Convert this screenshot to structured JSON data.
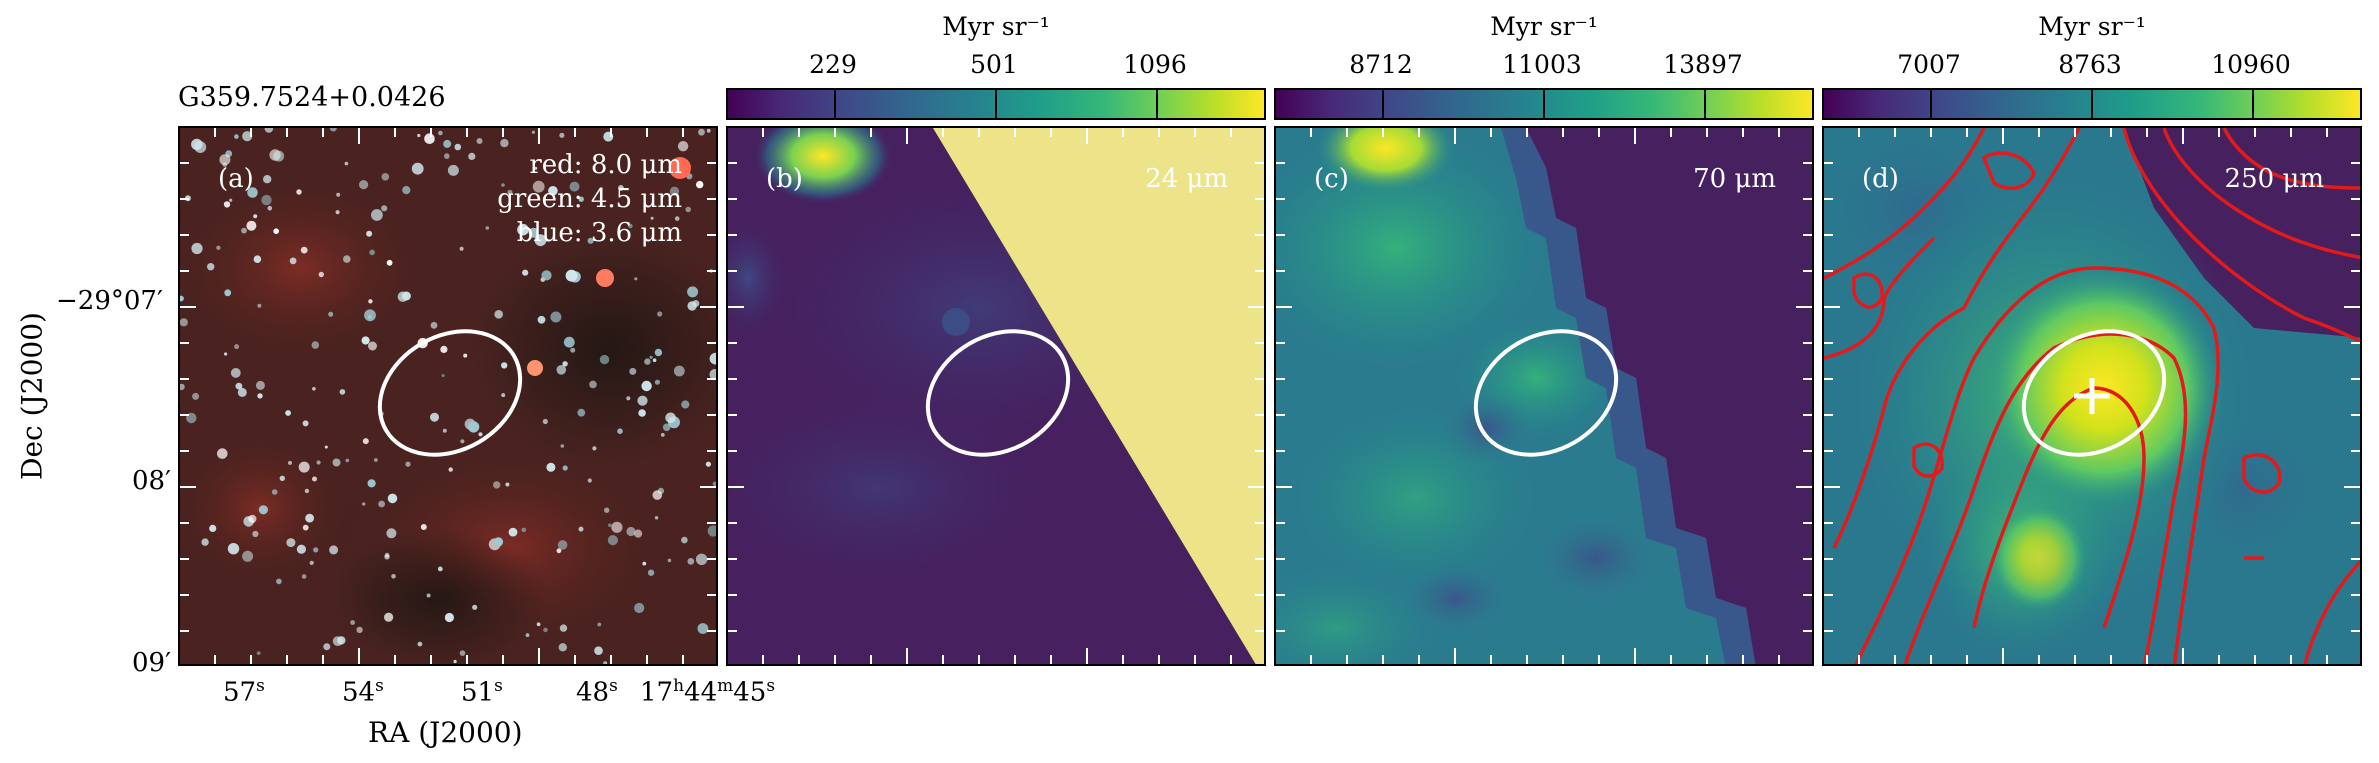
{
  "source_name": "G359.7524+0.0426",
  "xaxis_label": "RA (J2000)",
  "yaxis_label": "Dec (J2000)",
  "ra_ticks": {
    "t1": {
      "val": "57",
      "unit": "s"
    },
    "t2": {
      "val": "54",
      "unit": "s"
    },
    "t3": {
      "val": "51",
      "unit": "s"
    },
    "t4": {
      "val": "48",
      "unit": "s"
    },
    "t5": {
      "h": "17",
      "hu": "h",
      "m": "44",
      "mu": "m",
      "s": "45",
      "su": "s"
    }
  },
  "dec_ticks": {
    "t1": "−29°07′",
    "t2": "08′",
    "t3": "09′"
  },
  "panels": {
    "a": {
      "letter": "(a)",
      "legend": {
        "red": "red: 8.0 μm",
        "green": "green: 4.5 μm",
        "blue": "blue: 3.6 μm"
      }
    },
    "b": {
      "letter": "(b)",
      "band": "24 μm",
      "cbar_unit": "Myr sr⁻¹",
      "cbar_ticks": [
        "229",
        "501",
        "1096"
      ]
    },
    "c": {
      "letter": "(c)",
      "band": "70 μm",
      "cbar_unit": "Myr sr⁻¹",
      "cbar_ticks": [
        "8712",
        "11003",
        "13897"
      ]
    },
    "d": {
      "letter": "(d)",
      "band": "250 μm",
      "cbar_unit": "Myr sr⁻¹",
      "cbar_ticks": [
        "7007",
        "8763",
        "10960"
      ]
    }
  },
  "colors": {
    "ellipse": "#ffffff",
    "contour": "#e31a1c",
    "mask": "#ede48a",
    "viridis_low": "#440154",
    "viridis_high": "#fde725"
  }
}
